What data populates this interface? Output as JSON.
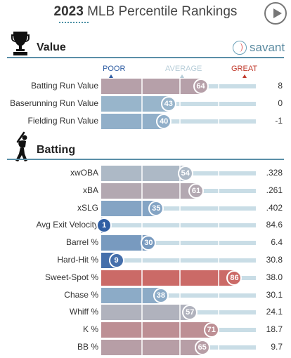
{
  "header": {
    "year": "2023",
    "title": "MLB Percentile Rankings"
  },
  "sections": {
    "value": {
      "title": "Value",
      "logo_text": "savant"
    },
    "batting": {
      "title": "Batting"
    }
  },
  "scale": {
    "poor": "POOR",
    "average": "AVERAGE",
    "great": "GREAT"
  },
  "colors": {
    "poor": "#2f5da3",
    "average": "#a9c3d2",
    "great": "#d8473e",
    "header_rule": "#5b8fa8",
    "savant_blue": "#5a8aa0"
  },
  "value_metrics": [
    {
      "label": "Batting Run Value",
      "percentile": 64,
      "value": "8"
    },
    {
      "label": "Baserunning Run Value",
      "percentile": 43,
      "value": "0"
    },
    {
      "label": "Fielding Run Value",
      "percentile": 40,
      "value": "-1"
    }
  ],
  "batting_metrics": [
    {
      "label": "xwOBA",
      "percentile": 54,
      "value": ".328"
    },
    {
      "label": "xBA",
      "percentile": 61,
      "value": ".261"
    },
    {
      "label": "xSLG",
      "percentile": 35,
      "value": ".402"
    },
    {
      "label": "Avg Exit Velocity",
      "percentile": 1,
      "value": "84.6"
    },
    {
      "label": "Barrel %",
      "percentile": 30,
      "value": "6.4"
    },
    {
      "label": "Hard-Hit %",
      "percentile": 9,
      "value": "30.8"
    },
    {
      "label": "Sweet-Spot %",
      "percentile": 86,
      "value": "38.0"
    },
    {
      "label": "Chase %",
      "percentile": 38,
      "value": "30.1"
    },
    {
      "label": "Whiff %",
      "percentile": 57,
      "value": "24.1"
    },
    {
      "label": "K %",
      "percentile": 71,
      "value": "18.7"
    },
    {
      "label": "BB %",
      "percentile": 65,
      "value": "9.7"
    }
  ]
}
